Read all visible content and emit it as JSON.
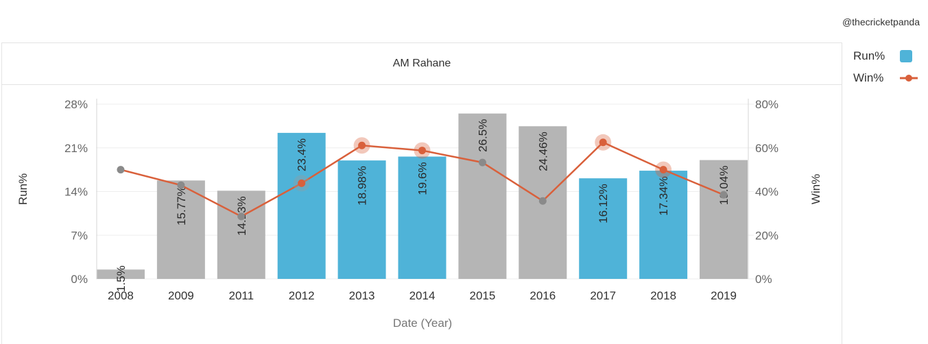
{
  "credit": "@thecricketpanda",
  "chart_data": {
    "type": "bar",
    "title": "AM Rahane",
    "xlabel": "Date (Year)",
    "ylabel": "Run%",
    "y2label": "Win%",
    "categories": [
      "2008",
      "2009",
      "2011",
      "2012",
      "2013",
      "2014",
      "2015",
      "2016",
      "2017",
      "2018",
      "2019"
    ],
    "ylim": [
      0,
      28
    ],
    "yticks": [
      "0%",
      "7%",
      "14%",
      "21%",
      "28%"
    ],
    "y2lim": [
      0,
      80
    ],
    "y2ticks": [
      "0%",
      "20%",
      "40%",
      "60%",
      "80%"
    ],
    "series": [
      {
        "name": "Run%",
        "type": "bar",
        "values": [
          1.5,
          15.77,
          14.13,
          23.4,
          18.98,
          19.6,
          26.5,
          24.46,
          16.12,
          17.34,
          19.04
        ],
        "labels": [
          "1.5%",
          "15.77%",
          "14.13%",
          "23.4%",
          "18.98%",
          "19.6%",
          "26.5%",
          "24.46%",
          "16.12%",
          "17.34%",
          "19.04%"
        ],
        "highlighted": [
          false,
          false,
          false,
          true,
          true,
          true,
          false,
          false,
          true,
          true,
          false
        ]
      },
      {
        "name": "Win%",
        "type": "line",
        "axis": "right",
        "values": [
          50,
          42.9,
          28.6,
          43.8,
          61.1,
          58.8,
          53.3,
          35.7,
          62.5,
          50,
          38.5
        ],
        "highlighted": [
          false,
          false,
          false,
          true,
          true,
          true,
          false,
          false,
          true,
          true,
          false
        ]
      }
    ],
    "colors": {
      "bar_highlight": "#4fb3d8",
      "bar_default": "#b5b5b5",
      "line": "#d9603b",
      "point_default": "#8a8a8a"
    },
    "legend_position": "top-right"
  }
}
